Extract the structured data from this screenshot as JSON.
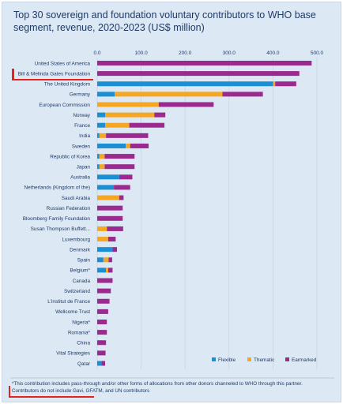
{
  "chart_data": {
    "type": "bar",
    "stacked": true,
    "orientation": "horizontal",
    "title": "Top 30 sovereign and foundation voluntary contributors to WHO base segment, revenue, 2020-2023 (US$ million)",
    "xlim": [
      0,
      500
    ],
    "xticks": [
      "0.0",
      "100.0",
      "200.0",
      "300.0",
      "400.0",
      "500.0"
    ],
    "grid": true,
    "legend": "bottom-right",
    "categories": [
      "United States of America",
      "Bill & Melinda Gates Foundation",
      "The United Kingdom",
      "Germany",
      "European Commission",
      "Norway",
      "France",
      "India",
      "Sweden",
      "Republic of Korea",
      "Japan",
      "Australia",
      "Netherlands (Kingdom of the)",
      "Saudi Arabia",
      "Russian Federation",
      "Bloomberg Family Foundation",
      "Susan Thompson Buffett...",
      "Luxembourg",
      "Denmark",
      "Spain",
      "Belgium*",
      "Canada",
      "Switzerland",
      "L'institut de France",
      "Wellcome Trust",
      "Nigeria*",
      "Romania*",
      "China",
      "Vital Strategies",
      "Qatar"
    ],
    "series": [
      {
        "name": "Flexible",
        "color": "#1b8fd2",
        "values": [
          0,
          0,
          400,
          40,
          0,
          18,
          18,
          5,
          65,
          5,
          5,
          50,
          38,
          0,
          0,
          0,
          0,
          0,
          35,
          14,
          20,
          0,
          0,
          0,
          0,
          0,
          0,
          0,
          0,
          10
        ]
      },
      {
        "name": "Thematic",
        "color": "#f5a623",
        "values": [
          0,
          0,
          5,
          245,
          140,
          112,
          55,
          15,
          10,
          12,
          12,
          0,
          0,
          50,
          0,
          0,
          22,
          25,
          0,
          12,
          5,
          0,
          0,
          0,
          0,
          0,
          0,
          0,
          0,
          0
        ]
      },
      {
        "name": "Earmarked",
        "color": "#9b2a8f",
        "values": [
          488,
          460,
          48,
          92,
          125,
          25,
          80,
          96,
          42,
          68,
          68,
          30,
          37,
          10,
          58,
          58,
          37,
          17,
          10,
          8,
          10,
          35,
          31,
          28,
          25,
          22,
          22,
          20,
          19,
          8
        ]
      }
    ]
  },
  "footnote": {
    "line1": "*This contribution includes pass-through and/or other forms of allocations from other donors channeled to WHO through this partner.",
    "line2": "Contributors do not include Gavi, GFATM, and UN contributors"
  },
  "colors": {
    "background": "#dde8f5",
    "text": "#1f3b64",
    "highlight": "#e8221b",
    "grid": "#c2cfdf"
  }
}
